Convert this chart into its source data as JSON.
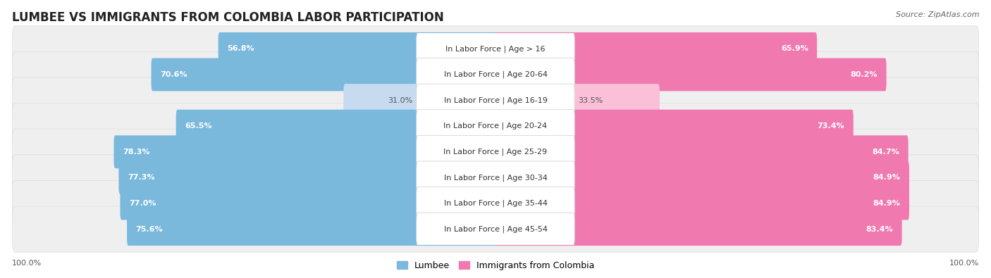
{
  "title": "LUMBEE VS IMMIGRANTS FROM COLOMBIA LABOR PARTICIPATION",
  "source": "Source: ZipAtlas.com",
  "categories": [
    "In Labor Force | Age > 16",
    "In Labor Force | Age 20-64",
    "In Labor Force | Age 16-19",
    "In Labor Force | Age 20-24",
    "In Labor Force | Age 25-29",
    "In Labor Force | Age 30-34",
    "In Labor Force | Age 35-44",
    "In Labor Force | Age 45-54"
  ],
  "lumbee_values": [
    56.8,
    70.6,
    31.0,
    65.5,
    78.3,
    77.3,
    77.0,
    75.6
  ],
  "colombia_values": [
    65.9,
    80.2,
    33.5,
    73.4,
    84.7,
    84.9,
    84.9,
    83.4
  ],
  "lumbee_color_strong": "#7ab8dc",
  "lumbee_color_light": "#c6dbef",
  "colombia_color_strong": "#f07ab0",
  "colombia_color_light": "#f9c0d8",
  "row_bg_color": "#efefef",
  "max_value": 100.0,
  "title_fontsize": 12,
  "label_fontsize": 8,
  "value_fontsize": 8,
  "legend_fontsize": 9,
  "source_fontsize": 8,
  "legend_lumbee": "Lumbee",
  "legend_colombia": "Immigrants from Colombia"
}
